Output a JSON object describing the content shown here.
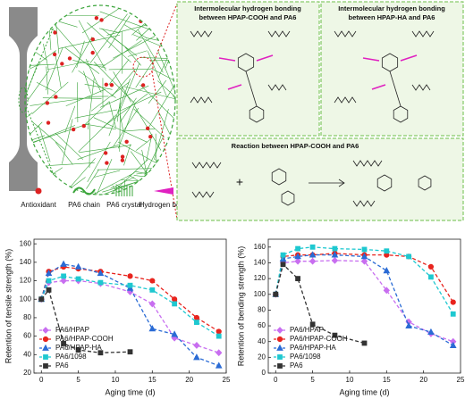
{
  "diagram": {
    "panels": [
      {
        "title_lines": [
          "Intermolecular hydrogen bonding",
          "between HPAP-COOH and PA6"
        ]
      },
      {
        "title_lines": [
          "Intermolecular hydrogen bonding",
          "between HPAP-HA and PA6"
        ]
      },
      {
        "title_lines": [
          "Reaction between HPAP-COOH and PA6"
        ],
        "operator": "+"
      }
    ],
    "legend": [
      "Antioxidant",
      "PA6 chain",
      "PA6 crystal",
      "Hydrogen bond"
    ]
  },
  "chart_data": [
    {
      "type": "line",
      "xlabel": "Aging time (d)",
      "ylabel": "Retention of tensile strength (%)",
      "x": [
        0,
        1,
        3,
        5,
        8,
        12,
        15,
        18,
        21,
        24
      ],
      "xlim": [
        -1,
        25
      ],
      "xticks": [
        0,
        5,
        10,
        15,
        20,
        25
      ],
      "ylim": [
        20,
        165
      ],
      "yticks": [
        20,
        40,
        60,
        80,
        100,
        120,
        140,
        160
      ],
      "legend": "lower left",
      "dashed": true,
      "series": [
        {
          "name": "PA6/HPAP",
          "color": "#c86ef0",
          "marker": "diamond",
          "values": [
            100,
            118,
            120,
            120,
            117,
            108,
            95,
            58,
            50,
            42
          ]
        },
        {
          "name": "PA6/HPAP-COOH",
          "color": "#e8241e",
          "marker": "circle",
          "values": [
            100,
            130,
            135,
            133,
            130,
            125,
            120,
            100,
            80,
            65
          ]
        },
        {
          "name": "PA6/HPAP-HA",
          "color": "#2a6bd5",
          "marker": "triangle",
          "values": [
            100,
            128,
            138,
            135,
            128,
            112,
            68,
            62,
            37,
            28
          ]
        },
        {
          "name": "PA6/1098",
          "color": "#1ec8d0",
          "marker": "square",
          "values": [
            100,
            120,
            125,
            122,
            118,
            115,
            110,
            95,
            75,
            60
          ]
        },
        {
          "name": "PA6",
          "color": "#333333",
          "marker": "square",
          "values": [
            100,
            110,
            52,
            45,
            42,
            43,
            null,
            null,
            null,
            null
          ]
        }
      ]
    },
    {
      "type": "line",
      "xlabel": "Aging time (d)",
      "ylabel": "Retention of bending strength (%)",
      "x": [
        0,
        1,
        3,
        5,
        8,
        12,
        15,
        18,
        21,
        24
      ],
      "xlim": [
        -1,
        25
      ],
      "xticks": [
        0,
        5,
        10,
        15,
        20,
        25
      ],
      "ylim": [
        0,
        170
      ],
      "yticks": [
        0,
        20,
        40,
        60,
        80,
        100,
        120,
        140,
        160
      ],
      "legend": "lower left",
      "dashed": true,
      "series": [
        {
          "name": "PA6/HPAP",
          "color": "#c86ef0",
          "marker": "diamond",
          "values": [
            100,
            140,
            142,
            142,
            143,
            142,
            105,
            65,
            50,
            40
          ]
        },
        {
          "name": "PA6/HPAP-COOH",
          "color": "#e8241e",
          "marker": "circle",
          "values": [
            100,
            148,
            150,
            150,
            152,
            150,
            150,
            148,
            135,
            90
          ]
        },
        {
          "name": "PA6/HPAP-HA",
          "color": "#2a6bd5",
          "marker": "triangle",
          "values": [
            100,
            145,
            148,
            150,
            150,
            148,
            130,
            60,
            52,
            35
          ]
        },
        {
          "name": "PA6/1098",
          "color": "#1ec8d0",
          "marker": "square",
          "values": [
            100,
            150,
            158,
            160,
            158,
            157,
            155,
            148,
            122,
            75
          ]
        },
        {
          "name": "PA6",
          "color": "#333333",
          "marker": "square",
          "values": [
            100,
            138,
            120,
            62,
            48,
            38,
            null,
            null,
            null,
            null
          ]
        }
      ]
    }
  ]
}
